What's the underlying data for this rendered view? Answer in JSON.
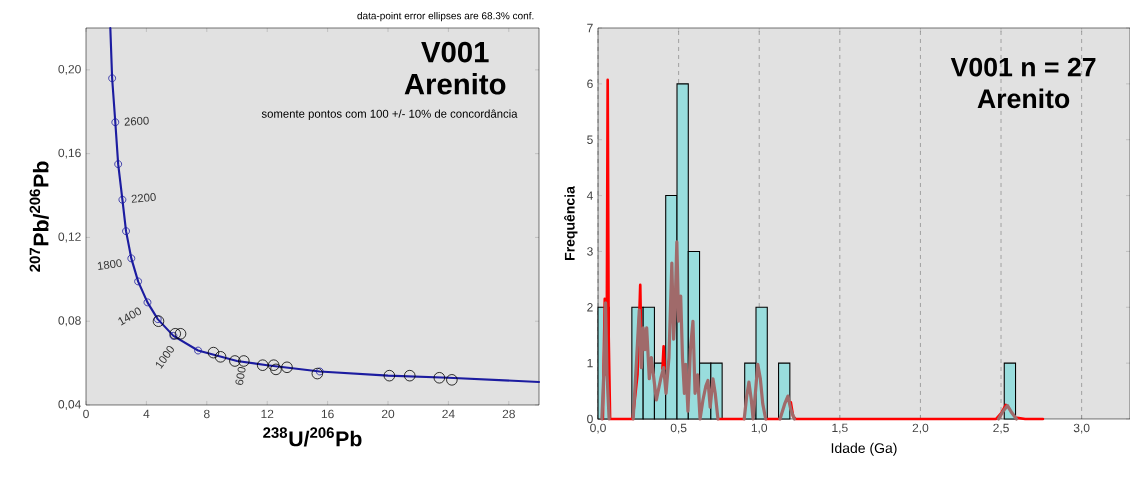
{
  "chart_data": [
    {
      "type": "scatter",
      "title": "V001",
      "subtitle": "Arenito",
      "xlabel": "$^{238}$U/$^{206}$Pb",
      "ylabel": "$^{207}$Pb/$^{206}$Pb",
      "annotations": [
        "data-point error ellipses are 68.3% conf.",
        "somente pontos com 100 +/- 10% de concordância",
        {
          "text": "2600",
          "x": 1.94,
          "y": 0.175
        },
        {
          "text": "2200",
          "x": 2.41,
          "y": 0.138
        },
        {
          "text": "1800",
          "x": 3.0,
          "y": 0.11
        },
        {
          "text": "1400",
          "x": 4.07,
          "y": 0.089
        },
        {
          "text": "1000",
          "x": 5.79,
          "y": 0.073
        },
        {
          "text": "600",
          "x": 10.0,
          "y": 0.061
        }
      ],
      "xlim": [
        0,
        30
      ],
      "xticks": [
        0,
        4,
        8,
        12,
        16,
        20,
        24,
        28
      ],
      "ylim": [
        0.04,
        0.22
      ],
      "yticks": [
        {
          "value": 0.04,
          "label": "0,04"
        },
        {
          "value": 0.08,
          "label": "0,08"
        },
        {
          "value": 0.12,
          "label": "0,12"
        },
        {
          "value": 0.16,
          "label": "0,16"
        },
        {
          "value": 0.2,
          "label": "0,20"
        }
      ],
      "series": [
        {
          "type": "line",
          "color": "#1c1ca0",
          "marker": "none",
          "x": [
            1.61,
            1.73,
            1.94,
            2.13,
            2.41,
            2.65,
            3.0,
            3.45,
            4.07,
            4.75,
            5.79,
            7.42,
            10,
            12,
            15.48,
            20,
            24,
            30
          ],
          "values": [
            0.22,
            0.196,
            0.175,
            0.155,
            0.138,
            0.123,
            0.11,
            0.099,
            0.089,
            0.081,
            0.073,
            0.066,
            0.061,
            0.059,
            0.056,
            0.054,
            0.053,
            0.051
          ]
        },
        {
          "type": "scatter",
          "color": "#1c1ca0",
          "marker": "circle",
          "x": [
            1.73,
            1.94,
            2.13,
            2.41,
            2.65,
            3.0,
            3.45,
            4.07,
            4.75,
            5.79,
            7.42,
            15.48
          ],
          "values": [
            0.196,
            0.175,
            0.155,
            0.138,
            0.123,
            0.11,
            0.099,
            0.089,
            0.081,
            0.073,
            0.066,
            0.056
          ]
        },
        {
          "type": "scatter",
          "color": "#000000",
          "marker": "circle",
          "x": [
            4.8,
            5.91,
            6.26,
            8.44,
            8.91,
            9.86,
            10.45,
            11.7,
            12.43,
            12.58,
            13.31,
            15.32,
            20.09,
            21.44,
            23.4,
            24.23
          ],
          "values": [
            0.08,
            0.074,
            0.074,
            0.065,
            0.063,
            0.061,
            0.061,
            0.059,
            0.059,
            0.057,
            0.058,
            0.055,
            0.054,
            0.054,
            0.053,
            0.052
          ]
        }
      ]
    },
    {
      "type": "histogram",
      "title": "V001  n = 27",
      "subtitle": "Arenito",
      "xlabel": "Idade (Ga)",
      "ylabel": "Frequência",
      "bins": [
        0,
        0.07,
        0.14,
        0.21,
        0.28,
        0.35,
        0.42,
        0.49,
        0.56,
        0.63,
        0.7,
        0.77,
        0.84,
        0.91,
        0.98,
        1.05,
        1.12,
        1.19,
        1.26,
        1.33,
        1.4,
        1.47,
        1.54,
        1.61,
        1.68,
        1.75,
        1.82,
        1.89,
        1.96,
        2.03,
        2.1,
        2.17,
        2.24,
        2.31,
        2.38,
        2.45,
        2.52,
        2.59
      ],
      "values": [
        2,
        0,
        0,
        2,
        2,
        1,
        4,
        6,
        3,
        1,
        1,
        0,
        0,
        1,
        2,
        0,
        1,
        0,
        0,
        0,
        0,
        0,
        0,
        0,
        0,
        0,
        0,
        0,
        0,
        0,
        0,
        0,
        0,
        0,
        0,
        0,
        1
      ],
      "color": "#99dddd",
      "xlim": [
        0,
        3.3
      ],
      "xticks": [
        {
          "value": 0,
          "label": "0,0"
        },
        {
          "value": 0.5,
          "label": "0,5"
        },
        {
          "value": 1.0,
          "label": "1,0"
        },
        {
          "value": 1.5,
          "label": "1,5"
        },
        {
          "value": 2.0,
          "label": "2,0"
        },
        {
          "value": 2.5,
          "label": "2,5"
        },
        {
          "value": 3.0,
          "label": "3,0"
        }
      ],
      "ylim": [
        0,
        7
      ],
      "yticks": [
        0,
        1,
        2,
        3,
        4,
        5,
        6,
        7
      ],
      "grid": "x",
      "series": [
        {
          "type": "line",
          "color": "#ff0000",
          "x": [
            0.03,
            0.042,
            0.048,
            0.055,
            0.06,
            0.066,
            0.075,
            0.215,
            0.245,
            0.262,
            0.27,
            0.28,
            0.4,
            0.407,
            0.414,
            0.42,
            0.744,
            0.907,
            0.93,
            1.04,
            1.129,
            1.15,
            1.196,
            1.21,
            1.225,
            2.47,
            2.5,
            2.53,
            2.54,
            2.6,
            2.65,
            2.76
          ],
          "values": [
            0,
            2.15,
            0.8,
            2.0,
            6.07,
            1.5,
            0,
            0,
            0.8,
            2.4,
            1.0,
            null,
            0.9,
            1.3,
            0.9,
            null,
            0,
            0,
            null,
            0,
            0,
            null,
            0.3,
            0.05,
            0,
            0,
            0.1,
            0.25,
            null,
            0.02,
            0,
            0
          ]
        },
        {
          "type": "line",
          "color": "#a06a6a",
          "x": [
            0.024,
            0.04,
            0.047,
            0.056,
            0.069,
            0.1,
            0.218,
            0.24,
            0.256,
            0.269,
            0.28,
            0.291,
            0.302,
            0.318,
            0.331,
            0.362,
            0.389,
            0.407,
            0.422,
            0.44,
            0.458,
            0.469,
            0.478,
            0.489,
            0.5,
            0.513,
            0.524,
            0.536,
            0.544,
            0.558,
            0.573,
            0.589,
            0.602,
            0.618,
            0.633,
            0.651,
            0.669,
            0.682,
            0.696,
            0.713,
            0.727,
            0.744,
            0.8,
            0.907,
            0.922,
            0.936,
            0.951,
            0.962,
            0.976,
            0.991,
            1.007,
            1.022,
            1.04,
            1.1,
            1.129,
            1.158,
            1.178,
            1.196,
            1.218,
            2.0,
            2.484,
            2.513,
            2.54,
            2.567,
            2.596
          ],
          "values": [
            0,
            1.1,
            2.08,
            0.79,
            0,
            null,
            0,
            1.1,
            1.95,
            0.92,
            1.63,
            1.24,
            1.63,
            0.72,
            1.1,
            0.34,
            0.72,
            0.92,
            0.46,
            1.1,
            2.79,
            1.43,
            1.95,
            3.17,
            1.75,
            2.2,
            1.1,
            0.46,
            0.98,
            0.14,
            1.24,
            1.75,
            0.46,
            0.79,
            0,
            0.34,
            0.59,
            0.69,
            0.21,
            0.72,
            0.46,
            0,
            null,
            0,
            0.4,
            0.66,
            0.34,
            0,
            0.46,
            0.98,
            0.72,
            0.27,
            0,
            null,
            0,
            0.27,
            0.41,
            0.17,
            0,
            null,
            0,
            0.14,
            0.24,
            0.11,
            0
          ]
        }
      ]
    }
  ]
}
